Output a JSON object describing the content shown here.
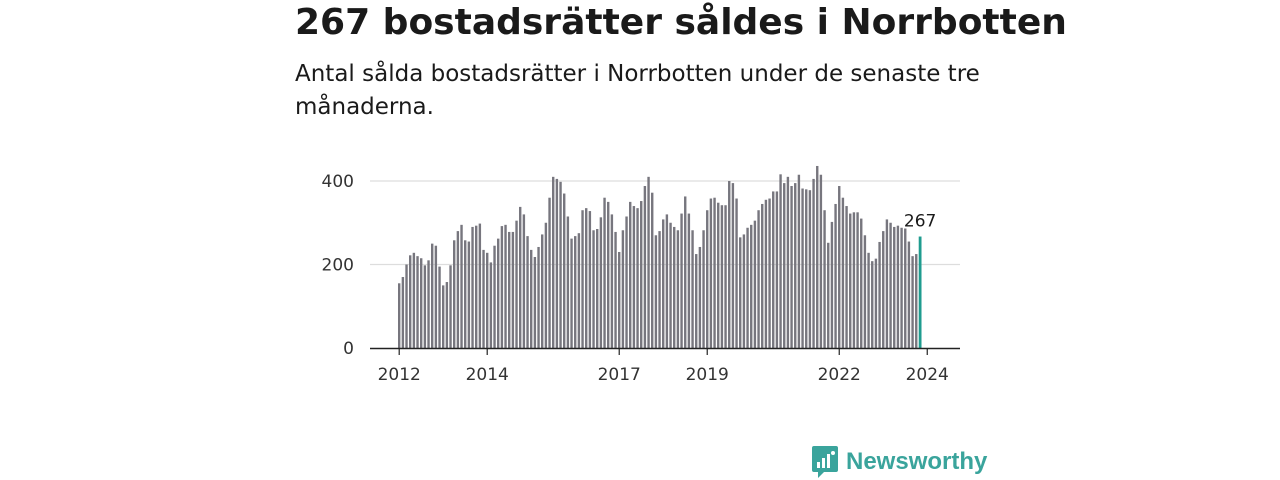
{
  "header": {
    "title": "267 bostadsrätter såldes i Norrbotten",
    "subtitle": "Antal sålda bostadsrätter i Norrbotten under de senaste tre månaderna."
  },
  "brand": {
    "name": "Newsworthy"
  },
  "colors": {
    "bar": "#77767e",
    "highlight": "#1f9c8f",
    "grid": "#dddddd",
    "axis": "#222222"
  },
  "chart_data": {
    "type": "bar",
    "title": "267 bostadsrätter såldes i Norrbotten",
    "subtitle": "Antal sålda bostadsrätter i Norrbotten under de senaste tre månaderna.",
    "xlabel": "",
    "ylabel": "",
    "ylim": [
      0,
      450
    ],
    "yticks": [
      0,
      200,
      400
    ],
    "xtick_labels": [
      "2012",
      "2014",
      "2017",
      "2019",
      "2022",
      "2024"
    ],
    "start_period": "2012-01",
    "frequency": "monthly",
    "highlight_last": true,
    "last_label": "267",
    "values": [
      155,
      170,
      200,
      222,
      228,
      220,
      215,
      198,
      210,
      250,
      245,
      195,
      150,
      158,
      198,
      258,
      280,
      295,
      258,
      255,
      290,
      293,
      298,
      235,
      228,
      205,
      245,
      262,
      292,
      295,
      278,
      278,
      305,
      338,
      320,
      268,
      235,
      218,
      242,
      272,
      300,
      360,
      410,
      405,
      398,
      370,
      315,
      262,
      268,
      275,
      330,
      335,
      328,
      282,
      285,
      313,
      360,
      350,
      320,
      278,
      230,
      282,
      315,
      350,
      340,
      335,
      352,
      388,
      410,
      372,
      270,
      280,
      308,
      320,
      300,
      290,
      282,
      322,
      363,
      322,
      282,
      225,
      242,
      282,
      330,
      358,
      360,
      348,
      342,
      342,
      400,
      395,
      358,
      265,
      272,
      288,
      295,
      305,
      330,
      345,
      355,
      358,
      375,
      375,
      416,
      395,
      410,
      388,
      395,
      415,
      382,
      380,
      378,
      405,
      436,
      415,
      330,
      252,
      302,
      345,
      388,
      360,
      340,
      322,
      325,
      325,
      310,
      270,
      228,
      208,
      214,
      254,
      280,
      308,
      300,
      290,
      293,
      288,
      288,
      255,
      220,
      225,
      267
    ]
  }
}
